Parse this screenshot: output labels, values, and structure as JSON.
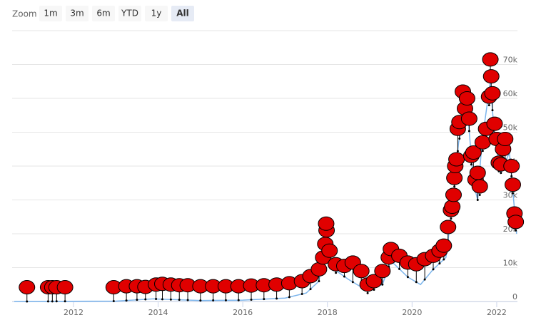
{
  "chart_data": {
    "type": "line",
    "range_selector": {
      "label": "Zoom",
      "buttons": [
        "1m",
        "3m",
        "6m",
        "YTD",
        "1y",
        "All"
      ],
      "selected": "All"
    },
    "x": [
      2010.6,
      2013.0,
      2013.9,
      2014.0,
      2015.0,
      2016.0,
      2017.0,
      2017.5,
      2017.8,
      2017.96,
      2018.1,
      2018.5,
      2018.9,
      2019.3,
      2019.5,
      2019.9,
      2020.2,
      2020.5,
      2020.8,
      2020.96,
      2021.1,
      2021.3,
      2021.45,
      2021.55,
      2021.65,
      2021.85,
      2021.95,
      2022.1,
      2022.3,
      2022.4,
      2022.47
    ],
    "values": [
      0,
      100,
      800,
      700,
      300,
      400,
      1000,
      2500,
      6000,
      19000,
      10000,
      6500,
      3500,
      5000,
      12000,
      7200,
      5000,
      9500,
      13000,
      29000,
      47000,
      58000,
      35000,
      30000,
      47000,
      65000,
      48000,
      38000,
      44000,
      30000,
      20000
    ],
    "color": "#7cb5ec",
    "flags": {
      "color": "#e00000",
      "x": [
        2010.9,
        2011.4,
        2011.5,
        2011.6,
        2011.8,
        2012.95,
        2013.25,
        2013.5,
        2013.7,
        2013.95,
        2014.1,
        2014.3,
        2014.5,
        2014.7,
        2015.0,
        2015.3,
        2015.6,
        2015.9,
        2016.2,
        2016.5,
        2016.8,
        2017.1,
        2017.4,
        2017.6,
        2017.8,
        2017.9,
        2017.95,
        2017.98,
        2017.97,
        2018.05,
        2018.2,
        2018.4,
        2018.6,
        2018.8,
        2018.95,
        2019.1,
        2019.3,
        2019.45,
        2019.5,
        2019.7,
        2019.9,
        2020.1,
        2020.3,
        2020.5,
        2020.65,
        2020.75,
        2020.85,
        2020.92,
        2020.95,
        2020.98,
        2021.0,
        2021.02,
        2021.05,
        2021.08,
        2021.12,
        2021.2,
        2021.25,
        2021.3,
        2021.35,
        2021.4,
        2021.45,
        2021.5,
        2021.55,
        2021.6,
        2021.67,
        2021.75,
        2021.82,
        2021.85,
        2021.87,
        2021.9,
        2021.95,
        2022.0,
        2022.05,
        2022.1,
        2022.15,
        2022.2,
        2022.35,
        2022.38,
        2022.42,
        2022.45
      ],
      "y": [
        4200,
        4200,
        4200,
        4200,
        4200,
        4200,
        4500,
        4500,
        4300,
        5000,
        5200,
        5000,
        4800,
        4800,
        4500,
        4500,
        4500,
        4500,
        4700,
        4800,
        5000,
        5400,
        6000,
        7500,
        9500,
        13000,
        17000,
        21000,
        23000,
        15000,
        11000,
        10500,
        11500,
        9000,
        5000,
        6000,
        9000,
        13000,
        15500,
        13500,
        11500,
        11000,
        12500,
        13500,
        15000,
        16500,
        22000,
        27000,
        28000,
        31500,
        36500,
        40000,
        42000,
        51000,
        53000,
        62000,
        57000,
        60000,
        54000,
        43000,
        44000,
        36000,
        38000,
        34000,
        47000,
        51000,
        60500,
        71500,
        66500,
        61500,
        52500,
        48000,
        41000,
        40500,
        45000,
        48000,
        40000,
        34500,
        26000,
        23500
      ]
    },
    "xlim": [
      2010.55,
      2022.49
    ],
    "xticks": [
      2012,
      2014,
      2016,
      2018,
      2020,
      2022
    ],
    "ylim": [
      0,
      80000
    ],
    "yticks": [
      0,
      {
        "value": 10000,
        "label": "10k"
      },
      {
        "value": 20000,
        "label": "20k"
      },
      {
        "value": 30000,
        "label": "30k"
      },
      {
        "value": 40000,
        "label": "40k"
      },
      {
        "value": 50000,
        "label": "50k"
      },
      {
        "value": 60000,
        "label": "60k"
      },
      {
        "value": 70000,
        "label": "70k"
      }
    ],
    "grid": true
  }
}
